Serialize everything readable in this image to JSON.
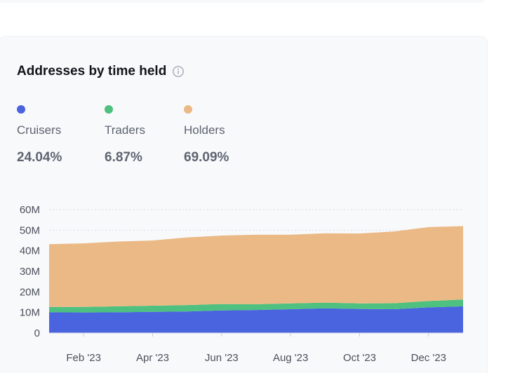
{
  "card": {
    "title": "Addresses by time held"
  },
  "icons": {
    "info": "info-icon"
  },
  "legend": [
    {
      "name": "Cruisers",
      "value": "24.04%",
      "color": "#4a64e0"
    },
    {
      "name": "Traders",
      "value": "6.87%",
      "color": "#4ec07f"
    },
    {
      "name": "Holders",
      "value": "69.09%",
      "color": "#ebb985"
    }
  ],
  "chart_data": {
    "type": "area",
    "stacked": true,
    "title": "Addresses by time held",
    "xlabel": "",
    "ylabel": "",
    "ylim": [
      0,
      60000000
    ],
    "yticks": [
      "0",
      "10M",
      "20M",
      "30M",
      "40M",
      "50M",
      "60M"
    ],
    "grid": true,
    "xticks": [
      "Feb '23",
      "Apr '23",
      "Jun '23",
      "Aug '23",
      "Oct '23",
      "Dec '23"
    ],
    "x": [
      "Jan '23",
      "Feb '23",
      "Mar '23",
      "Apr '23",
      "May '23",
      "Jun '23",
      "Jul '23",
      "Aug '23",
      "Sep '23",
      "Oct '23",
      "Nov '23",
      "Dec '23",
      "Jan '24"
    ],
    "series": [
      {
        "name": "Cruisers",
        "color": "#4a64e0",
        "values": [
          10.1,
          10.0,
          10.1,
          10.3,
          10.5,
          11.0,
          11.2,
          11.6,
          12.0,
          11.7,
          11.6,
          12.5,
          13.0
        ]
      },
      {
        "name": "Traders",
        "color": "#4ec07f",
        "values": [
          2.6,
          2.7,
          2.9,
          3.0,
          3.1,
          3.1,
          2.8,
          2.8,
          2.8,
          2.7,
          2.9,
          3.1,
          3.3
        ]
      },
      {
        "name": "Holders",
        "color": "#ebb985",
        "values": [
          30.5,
          30.9,
          31.5,
          31.7,
          32.9,
          33.3,
          33.8,
          33.4,
          33.7,
          34.0,
          34.9,
          35.9,
          35.7
        ]
      }
    ],
    "units": "millions"
  }
}
